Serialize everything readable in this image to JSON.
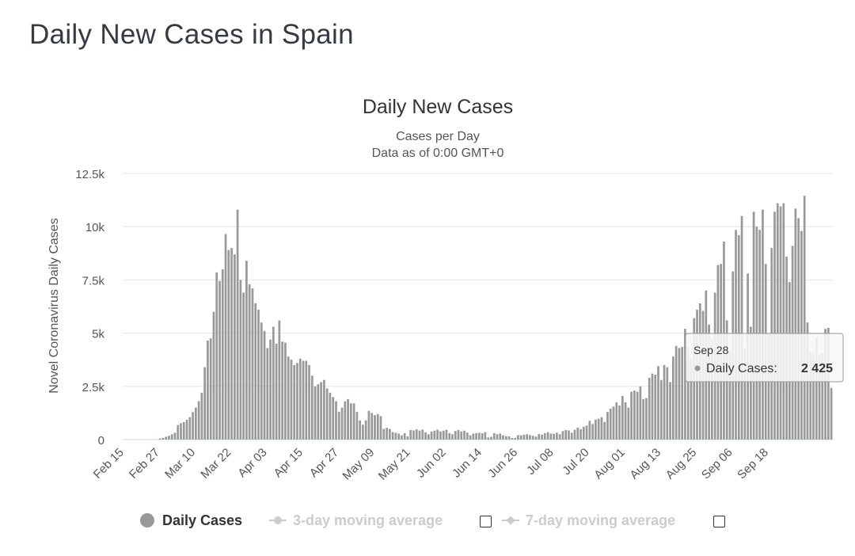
{
  "page": {
    "heading": "Daily New Cases in Spain"
  },
  "chart_data": {
    "type": "bar",
    "title": "Daily New Cases",
    "subtitle_line1": "Cases per Day",
    "subtitle_line2": "Data as of 0:00 GMT+0",
    "ylabel": "Novel Coronavirus Daily Cases",
    "xlabel": "",
    "ylim": [
      0,
      12500
    ],
    "y_ticks": [
      0,
      2500,
      5000,
      7500,
      10000,
      12500
    ],
    "y_tick_labels": [
      "0",
      "2.5k",
      "5k",
      "7.5k",
      "10k",
      "12.5k"
    ],
    "x_tick_labels": [
      "Feb 15",
      "Feb 27",
      "Mar 10",
      "Mar 22",
      "Apr 03",
      "Apr 15",
      "Apr 27",
      "May 09",
      "May 21",
      "Jun 02",
      "Jun 14",
      "Jun 26",
      "Jul 08",
      "Jul 20",
      "Aug 01",
      "Aug 13",
      "Aug 25",
      "Sep 06",
      "Sep 18"
    ],
    "start_date": "Feb 15",
    "end_date": "Sep 28",
    "grid": true,
    "bar_color": "#999999",
    "series": [
      {
        "name": "Daily Cases",
        "values": [
          0,
          0,
          0,
          0,
          0,
          0,
          0,
          0,
          0,
          0,
          0,
          0,
          50,
          80,
          130,
          180,
          250,
          320,
          680,
          770,
          820,
          930,
          1050,
          1290,
          1500,
          1800,
          2200,
          3400,
          4650,
          4750,
          6000,
          7850,
          7450,
          8000,
          9650,
          8900,
          9000,
          8700,
          10800,
          7500,
          6900,
          8400,
          7300,
          7100,
          6400,
          6100,
          5500,
          5100,
          4300,
          4700,
          5300,
          4500,
          5600,
          4600,
          4550,
          3900,
          3750,
          3500,
          3600,
          3800,
          3700,
          3700,
          3500,
          3000,
          2500,
          2600,
          2700,
          2800,
          2400,
          2200,
          2000,
          1800,
          1300,
          1500,
          1800,
          1900,
          1700,
          1700,
          1300,
          900,
          700,
          900,
          1350,
          1250,
          1150,
          1200,
          1100,
          500,
          550,
          500,
          350,
          320,
          280,
          200,
          300,
          150,
          450,
          430,
          480,
          420,
          470,
          340,
          250,
          380,
          420,
          460,
          380,
          420,
          460,
          300,
          250,
          400,
          450,
          380,
          420,
          330,
          200,
          280,
          300,
          320,
          300,
          350,
          100,
          130,
          300,
          250,
          280,
          200,
          160,
          150,
          70,
          80,
          210,
          200,
          230,
          250,
          210,
          180,
          140,
          260,
          230,
          300,
          350,
          280,
          270,
          320,
          250,
          400,
          450,
          430,
          320,
          460,
          560,
          490,
          600,
          660,
          880,
          730,
          940,
          980,
          1050,
          830,
          1300,
          1450,
          1550,
          1750,
          1600,
          2050,
          1750,
          1500,
          2250,
          2300,
          2250,
          2500,
          1900,
          1950,
          2900,
          3100,
          3050,
          3450,
          2800,
          3500,
          3400,
          2700,
          3900,
          4400,
          4300,
          4350,
          5200,
          4350,
          3800,
          5700,
          6100,
          6400,
          6050,
          7000,
          5400,
          4700,
          6900,
          8200,
          8250,
          9300,
          5600,
          4200,
          7900,
          9850,
          9600,
          10500,
          4300,
          7800,
          5300,
          10700,
          10000,
          9850,
          10800,
          8250,
          5000,
          9000,
          10700,
          11100,
          10950,
          11100,
          8600,
          7400,
          9100,
          10850,
          10400,
          9800,
          11450,
          5500,
          4100,
          4100,
          4800,
          4000,
          4050,
          5200,
          5250,
          2425
        ]
      }
    ],
    "tooltip": {
      "date": "Sep 28",
      "label": "Daily Cases:",
      "value": "2 425"
    }
  },
  "legend": {
    "items": [
      {
        "label": "Daily Cases",
        "state": "active"
      },
      {
        "label": "3-day moving average",
        "state": "inactive"
      },
      {
        "label": "7-day moving average",
        "state": "inactive"
      }
    ]
  }
}
